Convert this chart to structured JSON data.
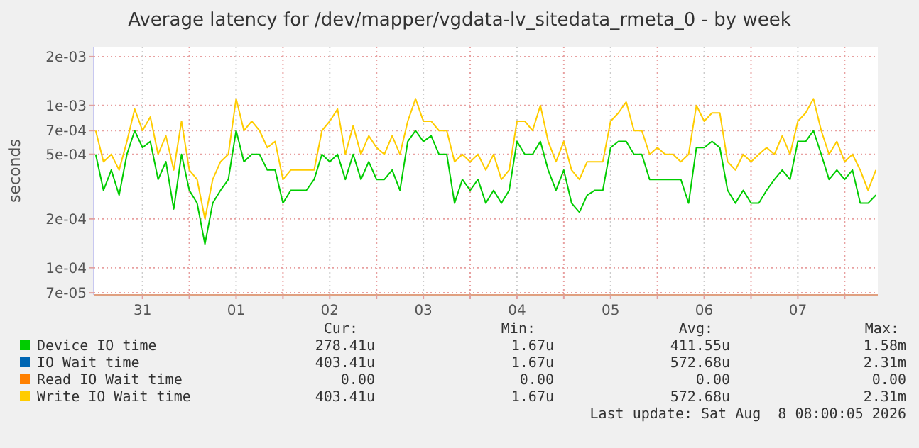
{
  "chart_data": {
    "type": "line",
    "title": "Average latency for /dev/mapper/vgdata-lv_sitedata_rmeta_0 - by week",
    "ylabel": "seconds",
    "log": "y",
    "grid": true,
    "legend": "bottom",
    "line_style": "solid",
    "xlim": [
      "2026-07-30T23:30",
      "2026-08-08T08:30"
    ],
    "xticks": [
      {
        "value": "2026-07-31T12:00",
        "label": "31"
      },
      {
        "value": "2026-08-01T00:00",
        "label": null
      },
      {
        "value": "2026-08-01T12:00",
        "label": "01"
      },
      {
        "value": "2026-08-02T00:00",
        "label": null
      },
      {
        "value": "2026-08-02T12:00",
        "label": "02"
      },
      {
        "value": "2026-08-03T00:00",
        "label": null
      },
      {
        "value": "2026-08-03T12:00",
        "label": "03"
      },
      {
        "value": "2026-08-04T00:00",
        "label": null
      },
      {
        "value": "2026-08-04T12:00",
        "label": "04"
      },
      {
        "value": "2026-08-05T00:00",
        "label": null
      },
      {
        "value": "2026-08-05T12:00",
        "label": "05"
      },
      {
        "value": "2026-08-06T00:00",
        "label": null
      },
      {
        "value": "2026-08-06T12:00",
        "label": "06"
      },
      {
        "value": "2026-08-07T00:00",
        "label": null
      },
      {
        "value": "2026-08-07T12:00",
        "label": "07"
      },
      {
        "value": "2026-08-08T00:00",
        "label": null
      }
    ],
    "ylim": [
      6.8e-05,
      0.0023
    ],
    "yticks": [
      {
        "value": 7e-05,
        "label": "7e-05"
      },
      {
        "value": 0.0001,
        "label": "1e-04"
      },
      {
        "value": 0.0002,
        "label": "2e-04"
      },
      {
        "value": 0.0005,
        "label": "5e-04"
      },
      {
        "value": 0.0007,
        "label": "7e-04"
      },
      {
        "value": 0.001,
        "label": "1e-03"
      },
      {
        "value": 0.002,
        "label": "2e-03"
      }
    ],
    "x": [
      "2026-07-31T00:00",
      "2026-07-31T02:00",
      "2026-07-31T04:00",
      "2026-07-31T06:00",
      "2026-07-31T08:00",
      "2026-07-31T10:00",
      "2026-07-31T12:00",
      "2026-07-31T14:00",
      "2026-07-31T16:00",
      "2026-07-31T18:00",
      "2026-07-31T20:00",
      "2026-07-31T22:00",
      "2026-08-01T00:00",
      "2026-08-01T02:00",
      "2026-08-01T04:00",
      "2026-08-01T06:00",
      "2026-08-01T08:00",
      "2026-08-01T10:00",
      "2026-08-01T12:00",
      "2026-08-01T14:00",
      "2026-08-01T16:00",
      "2026-08-01T18:00",
      "2026-08-01T20:00",
      "2026-08-01T22:00",
      "2026-08-02T00:00",
      "2026-08-02T02:00",
      "2026-08-02T04:00",
      "2026-08-02T06:00",
      "2026-08-02T08:00",
      "2026-08-02T10:00",
      "2026-08-02T12:00",
      "2026-08-02T14:00",
      "2026-08-02T16:00",
      "2026-08-02T18:00",
      "2026-08-02T20:00",
      "2026-08-02T22:00",
      "2026-08-03T00:00",
      "2026-08-03T02:00",
      "2026-08-03T04:00",
      "2026-08-03T06:00",
      "2026-08-03T08:00",
      "2026-08-03T10:00",
      "2026-08-03T12:00",
      "2026-08-03T14:00",
      "2026-08-03T16:00",
      "2026-08-03T18:00",
      "2026-08-03T20:00",
      "2026-08-03T22:00",
      "2026-08-04T00:00",
      "2026-08-04T02:00",
      "2026-08-04T04:00",
      "2026-08-04T06:00",
      "2026-08-04T08:00",
      "2026-08-04T10:00",
      "2026-08-04T12:00",
      "2026-08-04T14:00",
      "2026-08-04T16:00",
      "2026-08-04T18:00",
      "2026-08-04T20:00",
      "2026-08-04T22:00",
      "2026-08-05T00:00",
      "2026-08-05T02:00",
      "2026-08-05T04:00",
      "2026-08-05T06:00",
      "2026-08-05T08:00",
      "2026-08-05T10:00",
      "2026-08-05T12:00",
      "2026-08-05T14:00",
      "2026-08-05T16:00",
      "2026-08-05T18:00",
      "2026-08-05T20:00",
      "2026-08-05T22:00",
      "2026-08-06T00:00",
      "2026-08-06T02:00",
      "2026-08-06T04:00",
      "2026-08-06T06:00",
      "2026-08-06T08:00",
      "2026-08-06T10:00",
      "2026-08-06T12:00",
      "2026-08-06T14:00",
      "2026-08-06T16:00",
      "2026-08-06T18:00",
      "2026-08-06T20:00",
      "2026-08-06T22:00",
      "2026-08-07T00:00",
      "2026-08-07T02:00",
      "2026-08-07T04:00",
      "2026-08-07T06:00",
      "2026-08-07T08:00",
      "2026-08-07T10:00",
      "2026-08-07T12:00",
      "2026-08-07T14:00",
      "2026-08-07T16:00",
      "2026-08-07T18:00",
      "2026-08-07T20:00",
      "2026-08-07T22:00",
      "2026-08-08T00:00",
      "2026-08-08T02:00",
      "2026-08-08T04:00",
      "2026-08-08T06:00",
      "2026-08-08T08:00"
    ],
    "series": [
      {
        "name": "Device IO time",
        "color": "#00cc00",
        "values": [
          0.0005,
          0.0003,
          0.0004,
          0.00028,
          0.0005,
          0.0007,
          0.00055,
          0.0006,
          0.00035,
          0.00045,
          0.00023,
          0.0005,
          0.0003,
          0.00025,
          0.00014,
          0.00025,
          0.0003,
          0.00035,
          0.0007,
          0.00045,
          0.0005,
          0.0005,
          0.0004,
          0.0004,
          0.00025,
          0.0003,
          0.0003,
          0.0003,
          0.00035,
          0.0005,
          0.00045,
          0.0005,
          0.00035,
          0.0005,
          0.00035,
          0.00045,
          0.00035,
          0.00035,
          0.0004,
          0.0003,
          0.0006,
          0.0007,
          0.0006,
          0.00065,
          0.0005,
          0.0005,
          0.00025,
          0.00035,
          0.0003,
          0.00035,
          0.00025,
          0.0003,
          0.00025,
          0.0003,
          0.0006,
          0.0005,
          0.0005,
          0.0006,
          0.0004,
          0.0003,
          0.0004,
          0.00025,
          0.00022,
          0.00028,
          0.0003,
          0.0003,
          0.00055,
          0.0006,
          0.0006,
          0.0005,
          0.0005,
          0.00035,
          0.00035,
          0.00035,
          0.00035,
          0.00035,
          0.00025,
          0.00055,
          0.00055,
          0.0006,
          0.00055,
          0.0003,
          0.00025,
          0.0003,
          0.00025,
          0.00025,
          0.0003,
          0.00035,
          0.0004,
          0.00035,
          0.0006,
          0.0006,
          0.0007,
          0.0005,
          0.00035,
          0.0004,
          0.00035,
          0.0004,
          0.00025,
          0.00025,
          0.00028
        ]
      },
      {
        "name": "IO Wait time",
        "color": "#0066b3",
        "values": [
          null,
          null,
          null,
          null,
          null,
          null,
          null,
          null,
          null,
          null,
          null,
          null,
          null,
          null,
          null,
          null,
          null,
          null,
          null,
          null,
          null,
          null,
          null,
          null,
          null,
          null,
          null,
          null,
          null,
          null,
          null,
          null,
          null,
          null,
          null,
          null,
          null,
          null,
          null,
          null,
          null,
          null,
          null,
          null,
          null,
          null,
          null,
          null,
          null,
          null,
          null,
          null,
          null,
          null,
          null,
          null,
          null,
          null,
          null,
          null,
          null,
          null,
          null,
          null,
          null,
          null,
          null,
          null,
          null,
          null,
          null,
          null,
          null,
          null,
          null,
          null,
          null,
          null,
          null,
          null,
          null,
          null,
          null,
          null,
          null,
          null,
          null,
          null,
          null,
          null,
          null,
          null,
          null,
          null,
          null,
          null,
          null,
          null,
          null,
          null,
          null
        ]
      },
      {
        "name": "Read IO Wait time",
        "color": "#ff8000",
        "values": [
          null,
          null,
          null,
          null,
          null,
          null,
          null,
          null,
          null,
          null,
          null,
          null,
          null,
          null,
          null,
          null,
          null,
          null,
          null,
          null,
          null,
          null,
          null,
          null,
          null,
          null,
          null,
          null,
          null,
          null,
          null,
          null,
          null,
          null,
          null,
          null,
          null,
          null,
          null,
          null,
          null,
          null,
          null,
          null,
          null,
          null,
          null,
          null,
          null,
          null,
          null,
          null,
          null,
          null,
          null,
          null,
          null,
          null,
          null,
          null,
          null,
          null,
          null,
          null,
          null,
          null,
          null,
          null,
          null,
          null,
          null,
          null,
          null,
          null,
          null,
          null,
          null,
          null,
          null,
          null,
          null,
          null,
          null,
          null,
          null,
          null,
          null,
          null,
          null,
          null,
          null,
          null,
          null,
          null,
          null,
          null,
          null,
          null,
          null,
          null,
          null
        ]
      },
      {
        "name": "Write IO Wait time",
        "color": "#ffcc00",
        "values": [
          0.0007,
          0.00045,
          0.0005,
          0.0004,
          0.0006,
          0.00095,
          0.0007,
          0.00085,
          0.0005,
          0.00065,
          0.0004,
          0.0008,
          0.0004,
          0.00035,
          0.0002,
          0.00035,
          0.00045,
          0.0005,
          0.0011,
          0.0007,
          0.0008,
          0.0007,
          0.00055,
          0.0006,
          0.00035,
          0.0004,
          0.0004,
          0.0004,
          0.0004,
          0.0007,
          0.0008,
          0.00095,
          0.0005,
          0.00075,
          0.0005,
          0.00065,
          0.00055,
          0.0005,
          0.00065,
          0.0005,
          0.0008,
          0.0011,
          0.0008,
          0.0008,
          0.0007,
          0.0007,
          0.00045,
          0.0005,
          0.00045,
          0.0005,
          0.0004,
          0.0005,
          0.00035,
          0.0004,
          0.0008,
          0.0008,
          0.0007,
          0.001,
          0.0006,
          0.00045,
          0.0006,
          0.0004,
          0.00035,
          0.00045,
          0.00045,
          0.00045,
          0.0008,
          0.0009,
          0.00105,
          0.0007,
          0.0007,
          0.0005,
          0.00055,
          0.0005,
          0.0005,
          0.00045,
          0.0005,
          0.001,
          0.0008,
          0.0009,
          0.0009,
          0.00045,
          0.0004,
          0.0005,
          0.00045,
          0.0005,
          0.00055,
          0.0005,
          0.00065,
          0.0005,
          0.0008,
          0.0009,
          0.0011,
          0.0007,
          0.0005,
          0.0006,
          0.00045,
          0.0005,
          0.0004,
          0.0003,
          0.0004
        ]
      }
    ],
    "annotations": [
      "Cur:",
      "Min:",
      "Avg:",
      "Max:",
      "278.41u",
      "1.67u",
      "411.55u",
      "1.58m",
      "403.41u",
      "1.67u",
      "572.68u",
      "2.31m",
      "0.00",
      "0.00",
      "0.00",
      "0.00",
      "403.41u",
      "1.67u",
      "572.68u",
      "2.31m",
      "Last update: Sat Aug  8 08:00:05 2026"
    ]
  }
}
